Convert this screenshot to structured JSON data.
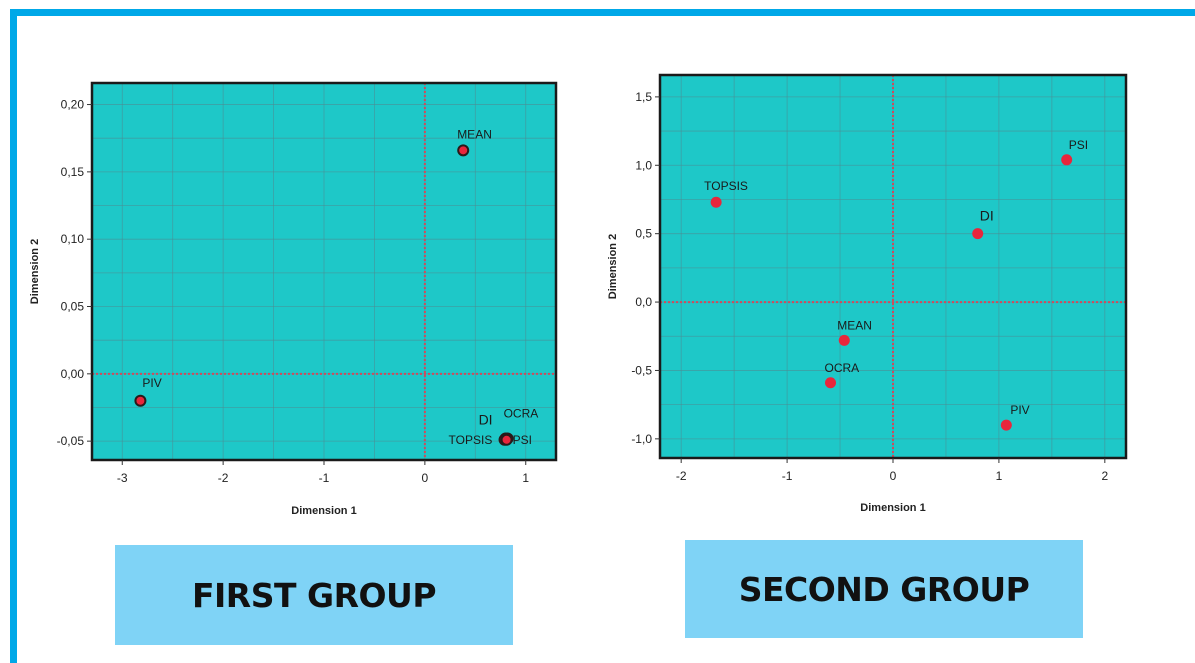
{
  "colors": {
    "frame": "#00a8e8",
    "plot_background": "#1ec8c8",
    "marker": "#e8263c",
    "gridline": "#4a8f96",
    "reference_line": "#d14a5c",
    "label_box": "#7fd3f6"
  },
  "captions": {
    "first": "FIRST GROUP",
    "second": "SECOND GROUP"
  },
  "chart_data": [
    {
      "type": "scatter",
      "xlabel": "Dimension 1",
      "ylabel": "Dimension 2",
      "xlim": [
        -3.3,
        1.3
      ],
      "ylim": [
        -0.064,
        0.216
      ],
      "xticks": [
        -3,
        -2,
        -1,
        0,
        1
      ],
      "yticks": [
        -0.05,
        0.0,
        0.05,
        0.1,
        0.15,
        0.2
      ],
      "xtick_labels": [
        "-3",
        "-2",
        "-1",
        "0",
        "1"
      ],
      "ytick_labels": [
        "-0,05",
        "0,00",
        "0,05",
        "0,10",
        "0,15",
        "0,20"
      ],
      "grid": true,
      "marker_outline": true,
      "points": [
        {
          "label": "MEAN",
          "x": 0.38,
          "y": 0.166
        },
        {
          "label": "PIV",
          "x": -2.82,
          "y": -0.02
        },
        {
          "label": "DI",
          "x": 0.8,
          "y": -0.048
        },
        {
          "label": "OCRA",
          "x": 0.82,
          "y": -0.048
        },
        {
          "label": "TOPSIS",
          "x": 0.79,
          "y": -0.049
        },
        {
          "label": "PSI",
          "x": 0.81,
          "y": -0.049
        }
      ]
    },
    {
      "type": "scatter",
      "xlabel": "Dimension 1",
      "ylabel": "Dimension 2",
      "xlim": [
        -2.2,
        2.2
      ],
      "ylim": [
        -1.14,
        1.66
      ],
      "xticks": [
        -2,
        -1,
        0,
        1,
        2
      ],
      "yticks": [
        -1.0,
        -0.5,
        0.0,
        0.5,
        1.0,
        1.5
      ],
      "xtick_labels": [
        "-2",
        "-1",
        "0",
        "1",
        "2"
      ],
      "ytick_labels": [
        "-1,0",
        "-0,5",
        "0,0",
        "0,5",
        "1,0",
        "1,5"
      ],
      "grid": true,
      "marker_outline": false,
      "points": [
        {
          "label": "TOPSIS",
          "x": -1.67,
          "y": 0.73
        },
        {
          "label": "PSI",
          "x": 1.64,
          "y": 1.04
        },
        {
          "label": "DI",
          "x": 0.8,
          "y": 0.5
        },
        {
          "label": "MEAN",
          "x": -0.46,
          "y": -0.28
        },
        {
          "label": "OCRA",
          "x": -0.59,
          "y": -0.59
        },
        {
          "label": "PIV",
          "x": 1.07,
          "y": -0.9
        }
      ]
    }
  ]
}
